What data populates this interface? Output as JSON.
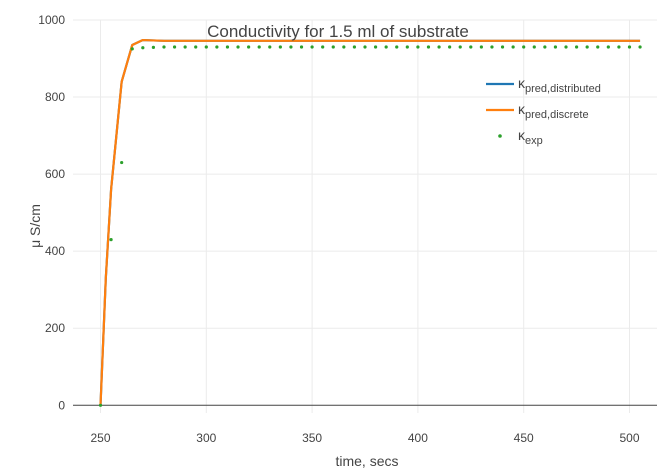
{
  "chart_data": {
    "type": "line",
    "title": "Conductivity for 1.5 ml of substrate",
    "xlabel": "time, secs",
    "ylabel": "μ S/cm",
    "xlim": [
      237,
      513
    ],
    "ylim": [
      -20,
      1000
    ],
    "xticks": [
      250,
      300,
      350,
      400,
      450,
      500
    ],
    "yticks": [
      0,
      200,
      400,
      600,
      800,
      1000
    ],
    "grid": true,
    "legend_position": "top-right",
    "series": [
      {
        "name": "κ_pred,distributed",
        "legend_main": "κ",
        "legend_sub": "pred,distributed",
        "style": "line",
        "color": "#1f77b4",
        "x": [
          250,
          252.5,
          255,
          260,
          265,
          270,
          275,
          280,
          300,
          350,
          400,
          450,
          505
        ],
        "y": [
          0,
          330,
          560,
          840,
          935,
          948,
          947,
          946,
          946,
          946,
          946,
          946,
          946
        ]
      },
      {
        "name": "κ_pred,discrete",
        "legend_main": "κ",
        "legend_sub": "pred,discrete",
        "style": "line",
        "color": "#ff7f0e",
        "x": [
          250,
          252.5,
          255,
          260,
          265,
          270,
          275,
          280,
          300,
          350,
          400,
          450,
          505
        ],
        "y": [
          0,
          330,
          560,
          840,
          935,
          948,
          947,
          946,
          946,
          946,
          946,
          946,
          946
        ]
      },
      {
        "name": "κ_exp",
        "legend_main": "κ",
        "legend_sub": "exp",
        "style": "markers",
        "color": "#2ca02c",
        "x": [
          250,
          255,
          260,
          265,
          270,
          275,
          280,
          285,
          290,
          295,
          300,
          305,
          310,
          315,
          320,
          325,
          330,
          335,
          340,
          345,
          350,
          355,
          360,
          365,
          370,
          375,
          380,
          385,
          390,
          395,
          400,
          405,
          410,
          415,
          420,
          425,
          430,
          435,
          440,
          445,
          450,
          455,
          460,
          465,
          470,
          475,
          480,
          485,
          490,
          495,
          500,
          505
        ],
        "y": [
          0,
          430,
          630,
          925,
          928,
          929,
          930,
          930,
          930,
          930,
          930,
          930,
          930,
          930,
          930,
          930,
          930,
          930,
          930,
          930,
          930,
          930,
          930,
          930,
          930,
          930,
          930,
          930,
          930,
          930,
          930,
          930,
          930,
          930,
          930,
          930,
          930,
          930,
          930,
          930,
          930,
          930,
          930,
          930,
          930,
          930,
          930,
          930,
          930,
          930,
          930,
          930
        ]
      }
    ]
  }
}
